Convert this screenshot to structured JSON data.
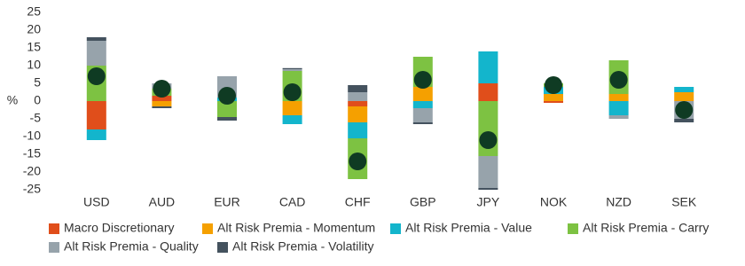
{
  "chart_data": {
    "type": "bar",
    "stacked": true,
    "y_label": "%",
    "categories": [
      "USD",
      "AUD",
      "EUR",
      "CAD",
      "CHF",
      "GBP",
      "JPY",
      "NOK",
      "NZD",
      "SEK"
    ],
    "series": [
      {
        "name": "Macro Discretionary",
        "color": "#e04e1b",
        "values": [
          -8,
          1.5,
          0,
          0,
          -1.5,
          0,
          5,
          -0.5,
          0,
          0
        ]
      },
      {
        "name": "Alt Risk Premia - Momentum",
        "color": "#f5a000",
        "values": [
          0,
          -1.5,
          0,
          -4,
          -4.5,
          4,
          0,
          2,
          2,
          2.5
        ]
      },
      {
        "name": "Alt Risk Premia - Value",
        "color": "#13b5cc",
        "values": [
          -3,
          0,
          1,
          -2.5,
          -4.5,
          -2,
          9,
          2,
          -4,
          1.5
        ]
      },
      {
        "name": "Alt Risk Premia - Carry",
        "color": "#7dc242",
        "values": [
          10,
          2,
          -4.5,
          8.5,
          -11.5,
          8.5,
          -15.5,
          1,
          9.5,
          0
        ]
      },
      {
        "name": "Alt Risk Premia - Quality",
        "color": "#97a3ab",
        "values": [
          7,
          1.5,
          6,
          0.5,
          2.5,
          -4,
          -9,
          0,
          -1,
          -5
        ]
      },
      {
        "name": "Alt Risk Premia - Volatility",
        "color": "#44525e",
        "values": [
          1,
          -0.5,
          -1,
          0.3,
          2,
          -0.5,
          -0.5,
          0,
          0,
          -1
        ]
      }
    ],
    "totals": [
      7,
      3.5,
      1.5,
      2.5,
      -17,
      6,
      -11,
      4.5,
      6,
      -2.5
    ],
    "totals_color": "#0f3b23",
    "ylim": [
      -25,
      25
    ],
    "yticks": [
      -25,
      -20,
      -15,
      -10,
      -5,
      0,
      5,
      10,
      15,
      20,
      25
    ],
    "grid": false
  }
}
